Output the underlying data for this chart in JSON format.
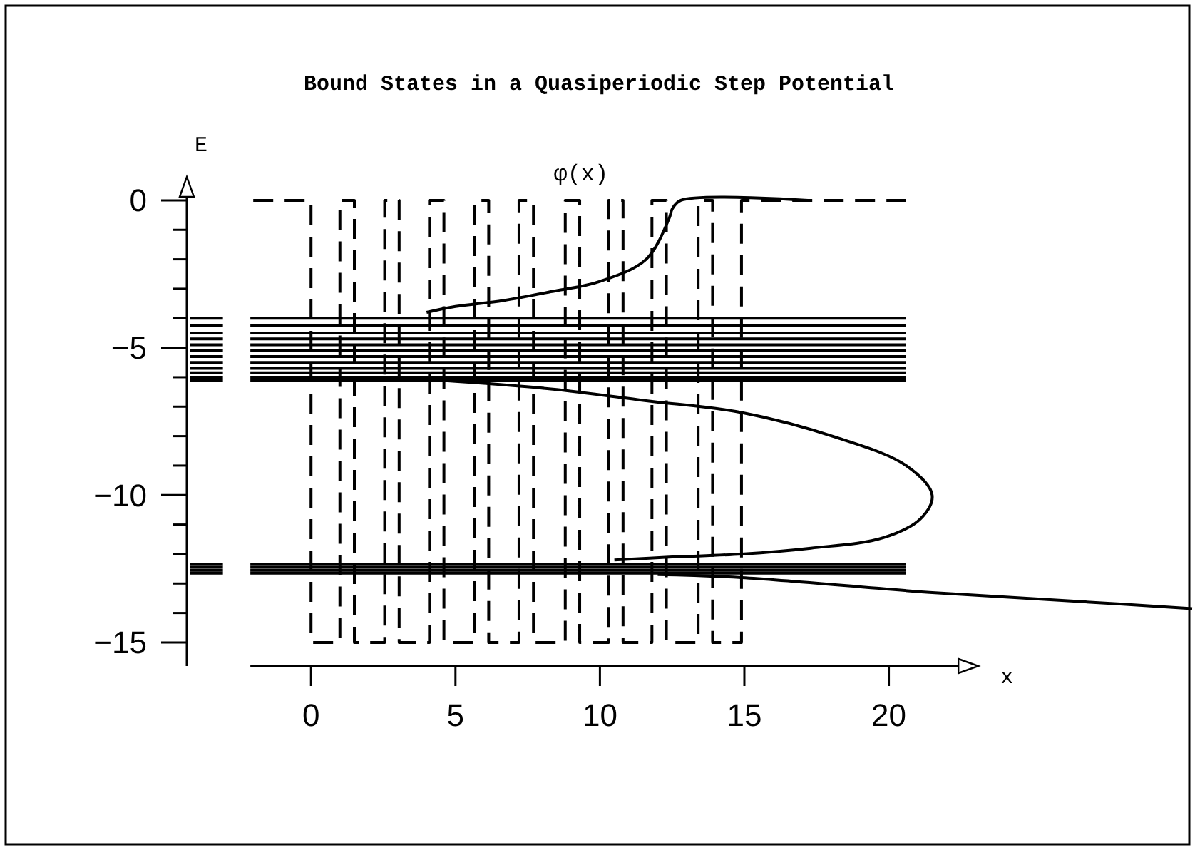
{
  "chart_data": {
    "type": "line",
    "title": "Bound States in a Quasiperiodic Step Potential",
    "xlabel": "x",
    "ylabel": "E",
    "xlim": [
      -4.3,
      30.5
    ],
    "ylim": [
      -15.8,
      0.7
    ],
    "xticks": [
      0,
      5,
      10,
      15,
      20
    ],
    "yticks": [
      0,
      {
        "value": -1,
        "label": null
      },
      {
        "value": -2,
        "label": null
      },
      {
        "value": -3,
        "label": null
      },
      {
        "value": -4,
        "label": null
      },
      -5,
      {
        "value": -6,
        "label": null
      },
      {
        "value": -7,
        "label": null
      },
      {
        "value": -8,
        "label": null
      },
      {
        "value": -9,
        "label": null
      },
      -10,
      {
        "value": -11,
        "label": null
      },
      {
        "value": -12,
        "label": null
      },
      {
        "value": -13,
        "label": null
      },
      {
        "value": -14,
        "label": null
      },
      -15
    ],
    "series": [
      {
        "color": "#000000",
        "line_style": "dashed",
        "x": [
          -2,
          0,
          0,
          1,
          1,
          1.5,
          1.5,
          2.55,
          2.55,
          3.05,
          3.05,
          4.1,
          4.1,
          4.6,
          4.6,
          5.65,
          5.65,
          6.15,
          6.15,
          7.2,
          7.2,
          7.7,
          7.7,
          8.8,
          8.8,
          9.3,
          9.3,
          10.3,
          10.3,
          10.8,
          10.8,
          11.8,
          11.8,
          12.3,
          12.3,
          13.4,
          13.4,
          13.9,
          13.9,
          14.9,
          14.9,
          20.6
        ],
        "values": [
          0,
          0,
          -15,
          -15,
          0,
          0,
          -15,
          -15,
          0,
          0,
          -15,
          -15,
          0,
          0,
          -15,
          -15,
          0,
          0,
          -15,
          -15,
          0,
          0,
          -15,
          -15,
          0,
          0,
          -15,
          -15,
          0,
          0,
          -15,
          -15,
          0,
          0,
          -15,
          -15,
          0,
          0,
          -15,
          -15,
          0,
          0
        ]
      },
      {
        "name": "φ(x)",
        "color": "#000000",
        "x": [
          17.2,
          12.8,
          12.5,
          12.4,
          11.6,
          10.0,
          8.3,
          6.65,
          5.0,
          4.0,
          null,
          4.4,
          8.3,
          11.6,
          14.9,
          18.2,
          20.6,
          21.5,
          21.1,
          19.8,
          17.3,
          14.9,
          12.5,
          10.5,
          null,
          12.0,
          14.9,
          21.4,
          26.4,
          30.5
        ],
        "values": [
          0,
          0,
          -0.3,
          -0.6,
          -2.0,
          -2.75,
          -3.1,
          -3.4,
          -3.6,
          -3.8,
          null,
          -6.1,
          -6.4,
          -6.8,
          -7.2,
          -8.05,
          -9.0,
          -10.0,
          -10.8,
          -11.45,
          -11.8,
          -12.0,
          -12.1,
          -12.2,
          null,
          -12.7,
          -12.8,
          -13.3,
          -13.6,
          -13.85
        ]
      },
      {
        "color": "#000000",
        "x": [
          -4.2,
          -3.05,
          -2.6,
          -2.1,
          20.6
        ],
        "values": [
          -4.0,
          -4.0,
          null,
          -4.0,
          -4.0
        ]
      },
      {
        "color": "#000000",
        "x": [
          -4.2,
          -3.05,
          -2.6,
          -2.1,
          20.6
        ],
        "values": [
          -4.25,
          -4.25,
          null,
          -4.25,
          -4.25
        ]
      },
      {
        "color": "#000000",
        "x": [
          -4.2,
          -3.05,
          -2.6,
          -2.1,
          20.6
        ],
        "values": [
          -4.5,
          -4.5,
          null,
          -4.5,
          -4.5
        ]
      },
      {
        "color": "#000000",
        "x": [
          -4.2,
          -3.05,
          -2.6,
          -2.1,
          20.6
        ],
        "values": [
          -4.7,
          -4.7,
          null,
          -4.7,
          -4.7
        ]
      },
      {
        "color": "#000000",
        "x": [
          -4.2,
          -3.05,
          -2.6,
          -2.1,
          20.6
        ],
        "values": [
          -4.9,
          -4.9,
          null,
          -4.9,
          -4.9
        ]
      },
      {
        "color": "#000000",
        "x": [
          -4.2,
          -3.05,
          -2.6,
          -2.1,
          20.6
        ],
        "values": [
          -5.1,
          -5.1,
          null,
          -5.1,
          -5.1
        ]
      },
      {
        "color": "#000000",
        "x": [
          -4.2,
          -3.05,
          -2.6,
          -2.1,
          20.6
        ],
        "values": [
          -5.3,
          -5.3,
          null,
          -5.3,
          -5.3
        ]
      },
      {
        "color": "#000000",
        "x": [
          -4.2,
          -3.05,
          -2.6,
          -2.1,
          20.6
        ],
        "values": [
          -5.5,
          -5.5,
          null,
          -5.5,
          -5.5
        ]
      },
      {
        "color": "#000000",
        "x": [
          -4.2,
          -3.05,
          -2.6,
          -2.1,
          20.6
        ],
        "values": [
          -5.7,
          -5.7,
          null,
          -5.7,
          -5.7
        ]
      },
      {
        "color": "#000000",
        "x": [
          -4.2,
          -3.05,
          -2.6,
          -2.1,
          20.6
        ],
        "values": [
          -5.85,
          -5.85,
          null,
          -5.85,
          -5.85
        ]
      },
      {
        "color": "#000000",
        "x": [
          -4.2,
          -3.05,
          -2.6,
          -2.1,
          20.6
        ],
        "values": [
          -6.0,
          -6.0,
          null,
          -6.0,
          -6.0
        ]
      },
      {
        "color": "#000000",
        "x": [
          -4.2,
          -3.05,
          -2.6,
          -2.1,
          20.6
        ],
        "values": [
          -6.1,
          -6.1,
          null,
          -6.1,
          -6.1
        ]
      },
      {
        "color": "#000000",
        "x": [
          -4.2,
          -3.05,
          -2.6,
          -2.1,
          20.6
        ],
        "values": [
          -12.35,
          -12.35,
          null,
          -12.35,
          -12.35
        ]
      },
      {
        "color": "#000000",
        "x": [
          -4.2,
          -3.05,
          -2.6,
          -2.1,
          20.6
        ],
        "values": [
          -12.45,
          -12.45,
          null,
          -12.45,
          -12.45
        ]
      },
      {
        "color": "#000000",
        "x": [
          -4.2,
          -3.05,
          -2.6,
          -2.1,
          20.6
        ],
        "values": [
          -12.55,
          -12.55,
          null,
          -12.55,
          -12.55
        ]
      },
      {
        "color": "#000000",
        "x": [
          -4.2,
          -3.05,
          -2.6,
          -2.1,
          20.6
        ],
        "values": [
          -12.65,
          -12.65,
          null,
          -12.65,
          -12.65
        ]
      }
    ]
  }
}
